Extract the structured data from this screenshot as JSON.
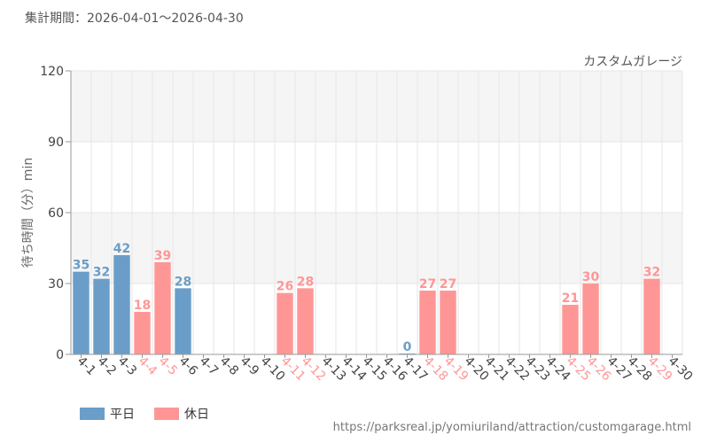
{
  "header": {
    "period": "集計期間：2026-04-01～2026-04-30"
  },
  "footer": {
    "url": "https://parksreal.jp/yomiuriland/attraction/customgarage.html"
  },
  "legend": {
    "weekday_label": "平日",
    "holiday_label": "休日"
  },
  "colors": {
    "weekday": "#6a9ec8",
    "holiday": "#ff9696",
    "grid": "#e6e6e6",
    "band": "#f5f5f5"
  },
  "chart_data": {
    "type": "bar",
    "title": "カスタムガレージ",
    "xlabel": "",
    "ylabel": "待ち時間（分）min",
    "ylim": [
      0,
      120
    ],
    "yticks": [
      0,
      30,
      60,
      90,
      120
    ],
    "grid": true,
    "legend_position": "bottom-left",
    "categories": [
      "4-1",
      "4-2",
      "4-3",
      "4-4",
      "4-5",
      "4-6",
      "4-7",
      "4-8",
      "4-9",
      "4-10",
      "4-11",
      "4-12",
      "4-13",
      "4-14",
      "4-15",
      "4-16",
      "4-17",
      "4-18",
      "4-19",
      "4-20",
      "4-21",
      "4-22",
      "4-23",
      "4-24",
      "4-25",
      "4-26",
      "4-27",
      "4-28",
      "4-29",
      "4-30"
    ],
    "day_type": [
      "weekday",
      "weekday",
      "weekday",
      "holiday",
      "holiday",
      "weekday",
      "weekday",
      "weekday",
      "weekday",
      "weekday",
      "holiday",
      "holiday",
      "weekday",
      "weekday",
      "weekday",
      "weekday",
      "weekday",
      "holiday",
      "holiday",
      "weekday",
      "weekday",
      "weekday",
      "weekday",
      "weekday",
      "holiday",
      "holiday",
      "weekday",
      "weekday",
      "holiday",
      "weekday"
    ],
    "values": [
      35,
      32,
      42,
      18,
      39,
      28,
      null,
      null,
      null,
      null,
      26,
      28,
      null,
      null,
      null,
      null,
      0,
      27,
      27,
      null,
      null,
      null,
      null,
      null,
      21,
      30,
      null,
      null,
      32,
      null
    ]
  }
}
